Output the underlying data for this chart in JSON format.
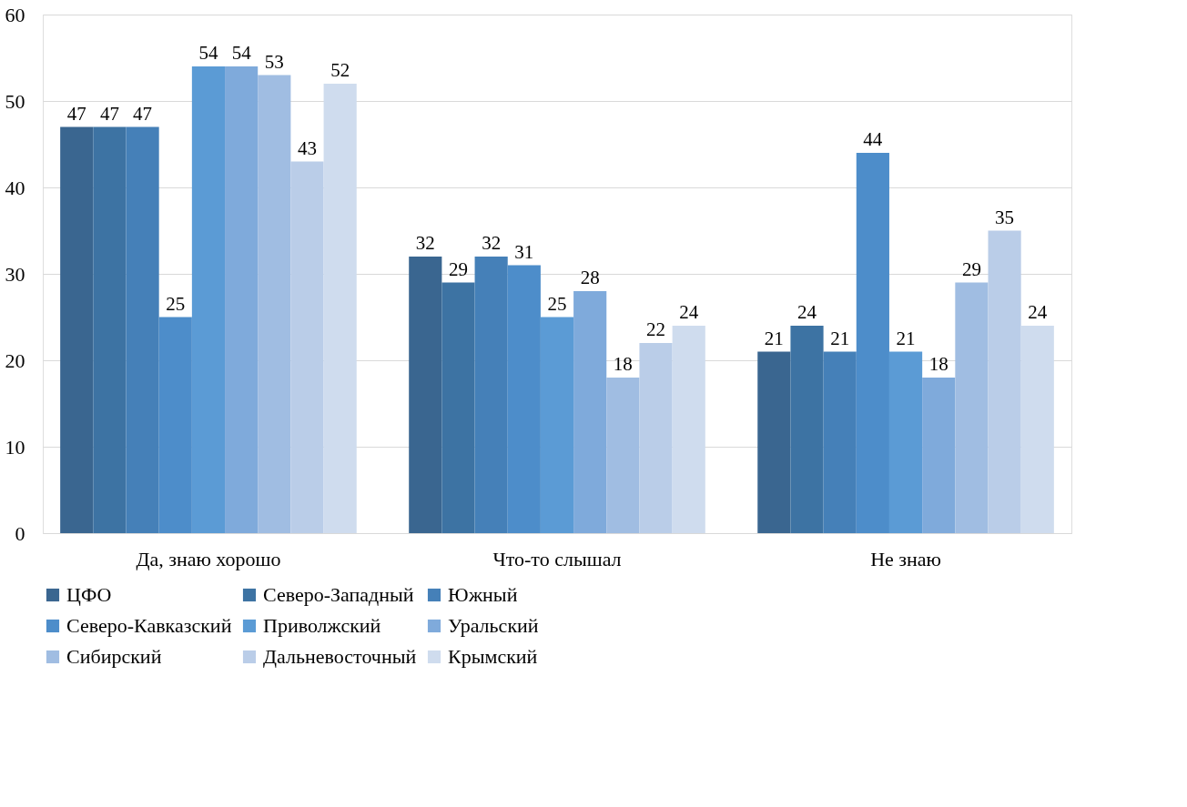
{
  "chart_data": {
    "type": "bar",
    "categories": [
      "Да, знаю хорошо",
      "Что-то слышал",
      "Не знаю"
    ],
    "series": [
      {
        "name": "ЦФО",
        "color": "#3a6690",
        "values": [
          47,
          32,
          21
        ]
      },
      {
        "name": "Северо-Западный",
        "color": "#3d73a3",
        "values": [
          47,
          29,
          24
        ]
      },
      {
        "name": "Южный",
        "color": "#4580b8",
        "values": [
          47,
          32,
          21
        ]
      },
      {
        "name": "Северо-Кавказский",
        "color": "#4d8dca",
        "values": [
          25,
          31,
          44
        ]
      },
      {
        "name": "Приволжский",
        "color": "#5b9bd5",
        "values": [
          54,
          25,
          21
        ]
      },
      {
        "name": "Уральский",
        "color": "#7faadb",
        "values": [
          54,
          28,
          18
        ]
      },
      {
        "name": "Сибирский",
        "color": "#a0bde2",
        "values": [
          53,
          18,
          29
        ]
      },
      {
        "name": "Дальневосточный",
        "color": "#bacde8",
        "values": [
          43,
          22,
          35
        ]
      },
      {
        "name": "Крымский",
        "color": "#cfdcee",
        "values": [
          52,
          24,
          24
        ]
      }
    ],
    "ylim": [
      0,
      60
    ],
    "yticks": [
      0,
      10,
      20,
      30,
      40,
      50,
      60
    ],
    "grid": "y",
    "legend": "bottom",
    "data_labels": true
  }
}
